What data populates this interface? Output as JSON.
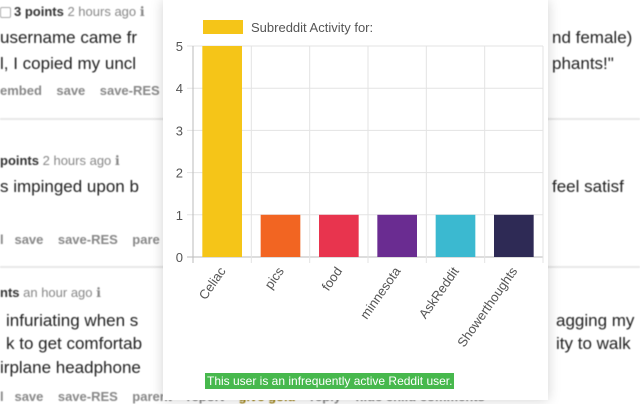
{
  "background": {
    "c1_meta_points": "3 points",
    "c1_meta_time": "2 hours ago",
    "c1_line1": "username came fr",
    "c1_line1_right": "nd female)",
    "c1_line2": "l, I copied my uncl",
    "c1_line2_right": "phants!\"",
    "c1_actions": [
      "embed",
      "save",
      "save-RES"
    ],
    "c2_meta_points": "points",
    "c2_meta_time": "2 hours ago",
    "c2_line1": "s impinged upon b",
    "c2_line1_right": "feel satisf",
    "c2_actions": [
      "l",
      "save",
      "save-RES",
      "pare"
    ],
    "c3_meta_points": "nts",
    "c3_meta_time": "an hour ago",
    "c3_line1": "infuriating when s",
    "c3_line1_right": "agging my",
    "c3_line2": "k to get comfortab",
    "c3_line2_right": "ity to walk",
    "c3_line3": "irplane headphone",
    "c3_actions": [
      "l",
      "save",
      "save-RES",
      "parent",
      "report",
      "give gold",
      "reply",
      "hide child comments"
    ]
  },
  "popup": {
    "legend_label": "Subreddit Activity for:",
    "legend_color": "#f5c518",
    "status_text": "This user is an infrequently active Reddit user."
  },
  "chart_data": {
    "type": "bar",
    "categories": [
      "Celiac",
      "pics",
      "food",
      "minnesota",
      "AskReddit",
      "Showerthoughts"
    ],
    "values": [
      5,
      1,
      1,
      1,
      1,
      1
    ],
    "colors": [
      "#f5c518",
      "#f26522",
      "#e8344e",
      "#6a2c91",
      "#3bb9d0",
      "#2e2a55"
    ],
    "ylim": [
      0,
      5
    ],
    "yticks": [
      0,
      1,
      2,
      3,
      4,
      5
    ],
    "grid": true,
    "legend_position": "top"
  }
}
